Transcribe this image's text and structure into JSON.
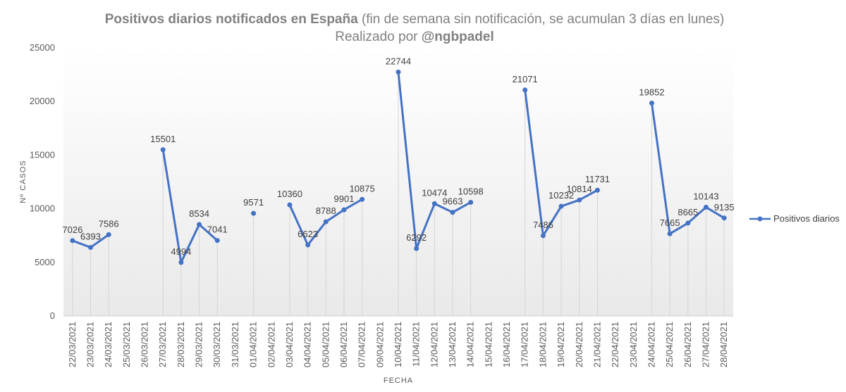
{
  "chart_data": {
    "type": "line",
    "title_bold": "Positivos diarios notificados en España",
    "title_rest": " (fin de semana sin notificación, se acumulan 3 días en lunes)",
    "subtitle_prefix": "Realizado por ",
    "subtitle_handle": "@ngbpadel",
    "xlabel": "FECHA",
    "ylabel": "Nº CASOS",
    "ylim": [
      0,
      25000
    ],
    "yticks": [
      0,
      5000,
      10000,
      15000,
      20000,
      25000
    ],
    "legend": {
      "label": "Positivos diarios",
      "position": "right"
    },
    "series_color": "#4472C4",
    "categories": [
      "22/03/2021",
      "23/03/2021",
      "24/03/2021",
      "25/03/2021",
      "26/03/2021",
      "27/03/2021",
      "28/03/2021",
      "29/03/2021",
      "30/03/2021",
      "31/03/2021",
      "01/04/2021",
      "02/04/2021",
      "03/04/2021",
      "04/04/2021",
      "05/04/2021",
      "06/04/2021",
      "07/04/2021",
      "09/04/2021",
      "10/04/2021",
      "11/04/2021",
      "12/04/2021",
      "13/04/2021",
      "14/04/2021",
      "15/04/2021",
      "16/04/2021",
      "17/04/2021",
      "18/04/2021",
      "19/04/2021",
      "20/04/2021",
      "21/04/2021",
      "22/04/2021",
      "23/04/2021",
      "24/04/2021",
      "25/04/2021",
      "26/04/2021",
      "27/04/2021",
      "28/04/2021"
    ],
    "series": [
      {
        "name": "Positivos diarios",
        "values": [
          7026,
          6393,
          7586,
          null,
          null,
          15501,
          4994,
          8534,
          7041,
          null,
          9571,
          null,
          10360,
          6623,
          8788,
          9901,
          10875,
          null,
          22744,
          6292,
          10474,
          9663,
          10598,
          null,
          null,
          21071,
          7486,
          10232,
          10814,
          11731,
          null,
          null,
          19852,
          7665,
          8665,
          10143,
          9135
        ]
      }
    ]
  }
}
